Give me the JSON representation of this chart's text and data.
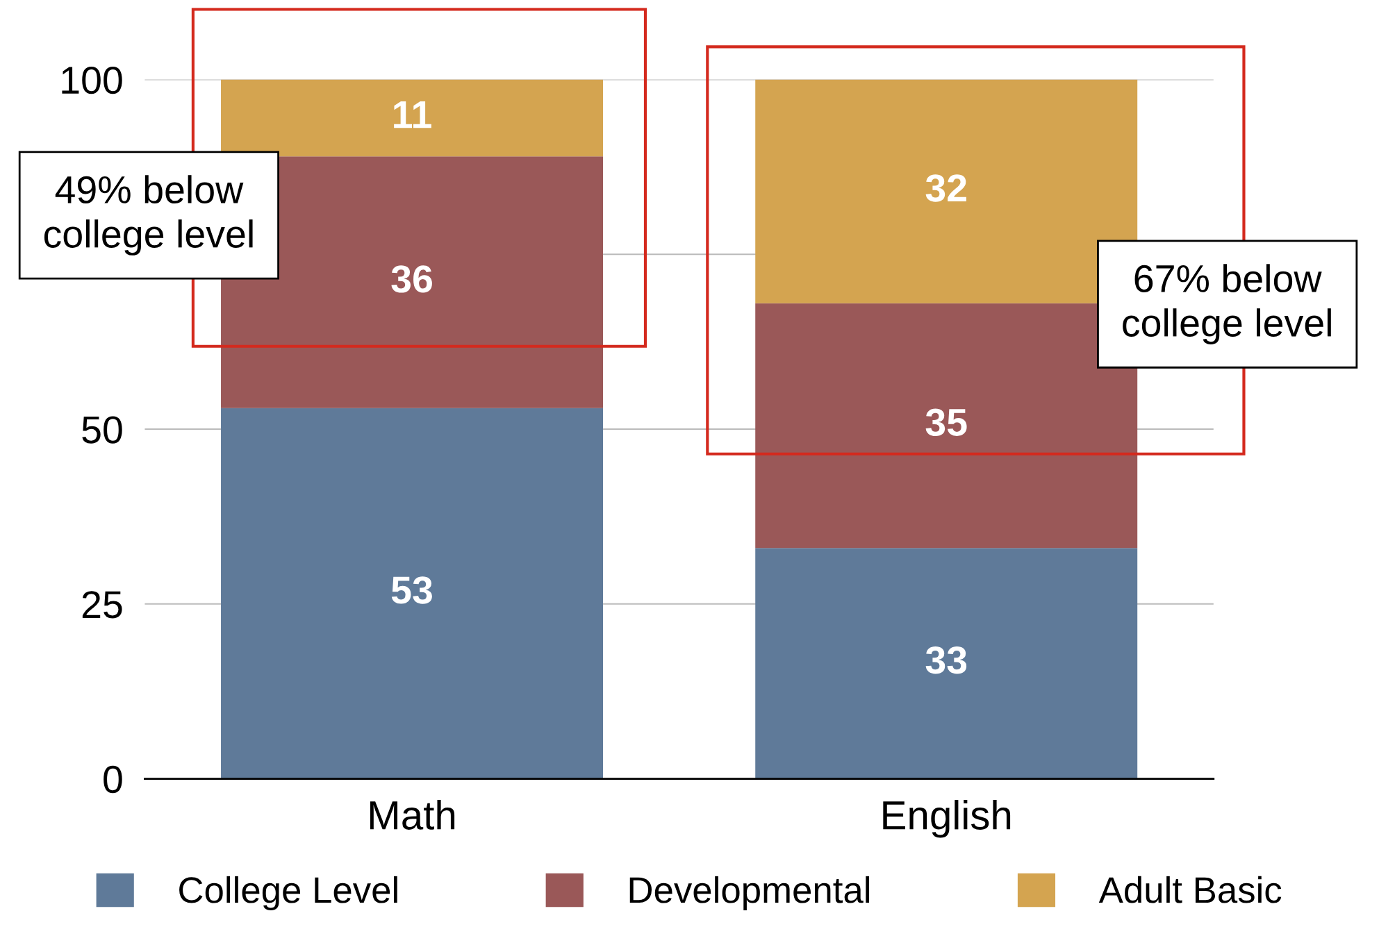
{
  "chart_data": {
    "type": "bar",
    "stacked": true,
    "categories": [
      "Math",
      "English"
    ],
    "series": [
      {
        "name": "College Level",
        "color": "#5f7a99",
        "values": [
          53,
          33
        ]
      },
      {
        "name": "Developmental",
        "color": "#9a5858",
        "values": [
          36,
          35
        ]
      },
      {
        "name": "Adult Basic",
        "color": "#d4a450",
        "values": [
          11,
          32
        ]
      }
    ],
    "ylim": [
      0,
      100
    ],
    "yticks": [
      0,
      25,
      50,
      {
        "value": 75,
        "label": null
      },
      100
    ],
    "grid": "y",
    "legend": "bottom",
    "data_labels": true,
    "annotations": [
      "49% below\ncollege level",
      "67% below\ncollege level"
    ]
  }
}
